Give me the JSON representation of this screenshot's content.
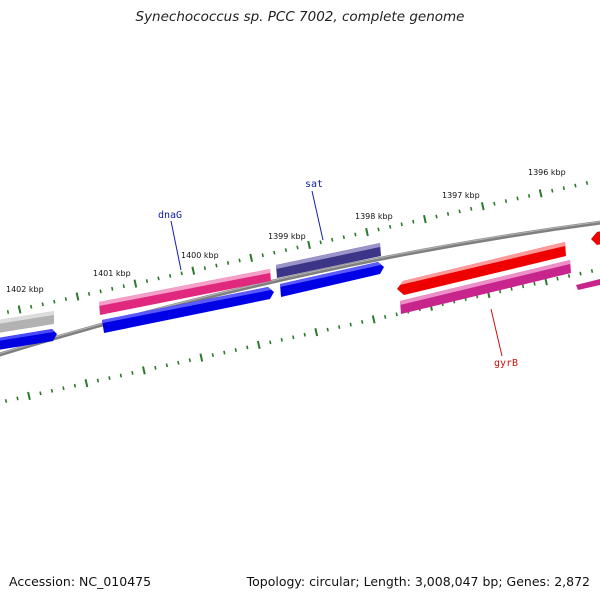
{
  "title": "Synechococcus sp. PCC 7002, complete genome",
  "footer": {
    "accession": "Accession: NC_010475",
    "topology": "Topology: circular; Length: 3,008,047 bp; Genes: 2,872"
  },
  "colors": {
    "backbone": "#808080",
    "tick": "#2a7a2a",
    "gene_blue": "#0000e6",
    "gene_pink": "#e0287f",
    "gene_navy": "#3c3487",
    "gene_red": "#ee0000",
    "gene_magenta": "#c8258c",
    "gene_gray": "#b0b0b0",
    "label_blue": "#1020b0",
    "label_red": "#cc1010"
  },
  "scale": {
    "unit": "kbp",
    "labels": [
      "1396 kbp",
      "1397 kbp",
      "1398 kbp",
      "1399 kbp",
      "1400 kbp",
      "1401 kbp",
      "1402 kbp"
    ]
  },
  "gene_labels": [
    {
      "name": "dnaG",
      "color_key": "label_blue"
    },
    {
      "name": "sat",
      "color_key": "label_blue"
    },
    {
      "name": "gyrB",
      "color_key": "label_red"
    }
  ]
}
